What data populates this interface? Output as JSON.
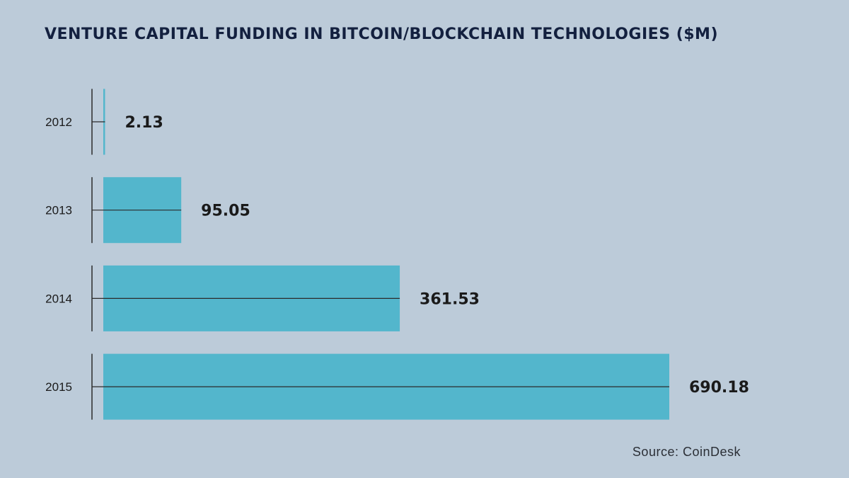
{
  "chart_data": {
    "type": "bar",
    "orientation": "horizontal",
    "title": "VENTURE CAPITAL FUNDING IN BITCOIN/BLOCKCHAIN TECHNOLOGIES ($M)",
    "categories": [
      "2012",
      "2013",
      "2014",
      "2015"
    ],
    "values": [
      2.13,
      95.05,
      361.53,
      690.18
    ],
    "data_labels": [
      "2.13",
      "95.05",
      "361.53",
      "690.18"
    ],
    "xlim": [
      0,
      690.18
    ],
    "grid": false,
    "bar_color": "#53b6cc",
    "source": "Source: CoinDesk"
  },
  "colors": {
    "background": "#bccbd9",
    "bar": "#53b6cc",
    "title": "#13203f",
    "label": "#1a1a1a",
    "axis": "#2b2b2b"
  }
}
